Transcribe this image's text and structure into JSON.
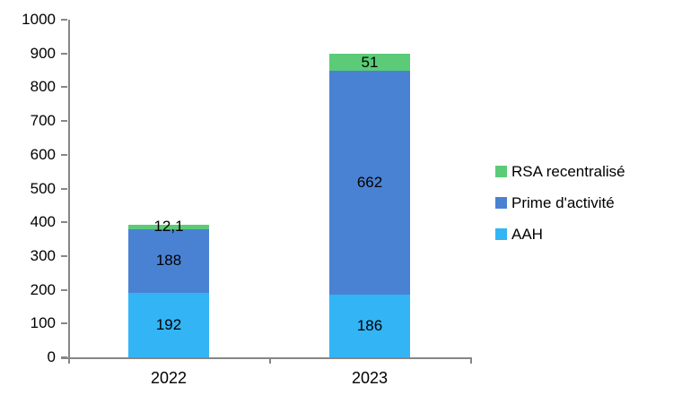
{
  "chart": {
    "background_color": "#FFFFFF",
    "axis_color": "#868686",
    "text_color": "#000000"
  },
  "chart_data": {
    "type": "bar",
    "stacked": true,
    "title": "",
    "xlabel": "",
    "ylabel": "",
    "categories": [
      "2022",
      "2023"
    ],
    "series": [
      {
        "name": "AAH",
        "color": "#33B4F5",
        "values": [
          192,
          186
        ],
        "labels": [
          "192",
          "186"
        ]
      },
      {
        "name": "Prime d'activité",
        "color": "#4A82D3",
        "values": [
          188,
          662
        ],
        "labels": [
          "188",
          "662"
        ]
      },
      {
        "name": "RSA recentralisé",
        "color": "#5BCB77",
        "values": [
          12.1,
          51
        ],
        "labels": [
          "12,1",
          "51"
        ]
      }
    ],
    "legend": [
      {
        "label": "RSA recentralisé",
        "color": "#5BCB77"
      },
      {
        "label": "Prime d'activité",
        "color": "#4A82D3"
      },
      {
        "label": "AAH",
        "color": "#33B4F5"
      }
    ],
    "legend_position": "right",
    "grid": false,
    "ylim": [
      0,
      1000
    ],
    "ytick_step": 100,
    "ytick_labels": [
      "0",
      "100",
      "200",
      "300",
      "400",
      "500",
      "600",
      "700",
      "800",
      "900",
      "1000"
    ]
  }
}
